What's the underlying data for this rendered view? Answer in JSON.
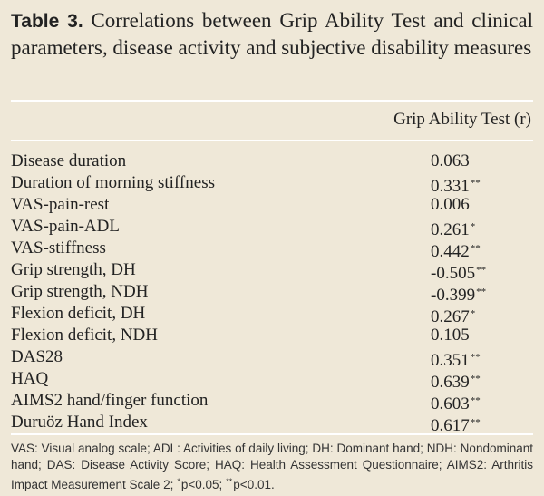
{
  "title": {
    "label": "Table 3.",
    "text": "Correlations between Grip Ability Test and clinical parameters, disease activity and subjective disability measures"
  },
  "table": {
    "header": "Grip Ability Test (r)",
    "rows": [
      {
        "label": "Disease duration",
        "value": "0.063"
      },
      {
        "label": "Duration of morning stiffness",
        "value": "0.331",
        "sig": "**"
      },
      {
        "label": "VAS-pain-rest",
        "value": "0.006"
      },
      {
        "label": "VAS-pain-ADL",
        "value": "0.261",
        "sig": "*"
      },
      {
        "label": "VAS-stiffness",
        "value": "0.442",
        "sig": "**"
      },
      {
        "label": "Grip strength, DH",
        "value": "-0.505",
        "sig": "**"
      },
      {
        "label": "Grip strength, NDH",
        "value": "-0.399",
        "sig": "**"
      },
      {
        "label": "Flexion deficit, DH",
        "value": "0.267",
        "sig": "*"
      },
      {
        "label": "Flexion deficit, NDH",
        "value": "0.105"
      },
      {
        "label": "DAS28",
        "value": "0.351",
        "sig": "**"
      },
      {
        "label": "HAQ",
        "value": "0.639",
        "sig": "**"
      },
      {
        "label": "AIMS2 hand/finger function",
        "value": "0.603",
        "sig": "**"
      },
      {
        "label": "Duruöz Hand Index",
        "value": "0.617",
        "sig": "**"
      }
    ]
  },
  "footnote": [
    {
      "text": "VAS: Visual analog scale; ADL: Activities of daily living; DH: Dominant hand; NDH: Nondominant hand; DAS: Disease Activity Score; HAQ: Health Assessment Questionnaire; AIMS2: Arthritis Impact Measurement Scale 2;"
    },
    {
      "sup": "*"
    },
    {
      "text": "p<0.05;"
    },
    {
      "sup": "**"
    },
    {
      "text": "p<0.01."
    }
  ]
}
